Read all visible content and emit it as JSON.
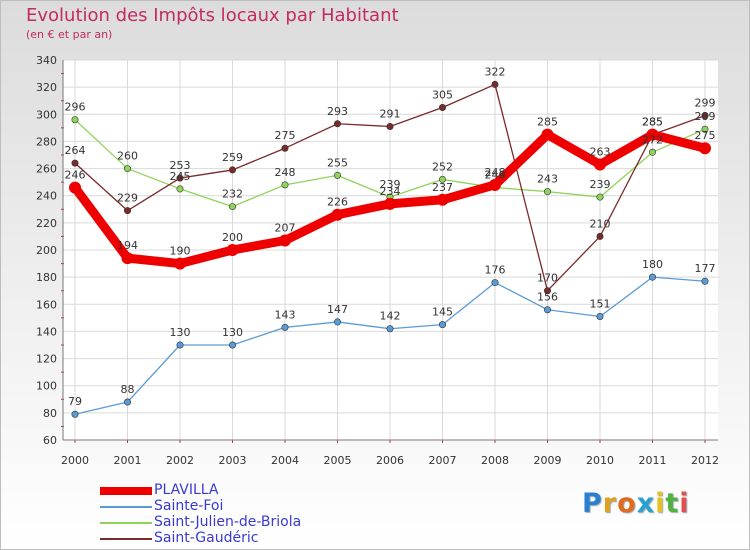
{
  "title": "Evolution des Impôts locaux par Habitant",
  "subtitle": "(en € et par an)",
  "logo_text": "Proxiti",
  "logo_letters": [
    {
      "ch": "P",
      "color": "#2a7fd0"
    },
    {
      "ch": "r",
      "color": "#e0a020"
    },
    {
      "ch": "o",
      "color": "#e06a20"
    },
    {
      "ch": "x",
      "color": "#2aa0d0"
    },
    {
      "ch": "i",
      "color": "#e8c020"
    },
    {
      "ch": "t",
      "color": "#50b040"
    },
    {
      "ch": "i",
      "color": "#e05050"
    }
  ],
  "chart_data": {
    "type": "line",
    "title": "Evolution des Impôts locaux par Habitant",
    "subtitle": "(en € et par an)",
    "xlabel": "",
    "ylabel": "",
    "categories": [
      "2000",
      "2001",
      "2002",
      "2003",
      "2004",
      "2005",
      "2006",
      "2007",
      "2008",
      "2009",
      "2010",
      "2011",
      "2012"
    ],
    "ylim": [
      60,
      340
    ],
    "yticks": [
      60,
      80,
      100,
      120,
      140,
      160,
      180,
      200,
      220,
      240,
      260,
      280,
      300,
      320,
      340
    ],
    "grid": true,
    "legend_position": "bottom-left",
    "series": [
      {
        "name": "PLAVILLA",
        "color": "#ee0000",
        "values": [
          246,
          194,
          190,
          200,
          207,
          226,
          234,
          237,
          248,
          285,
          263,
          285,
          275
        ]
      },
      {
        "name": "Sainte-Foi",
        "color": "#5b9bd5",
        "values": [
          79,
          88,
          130,
          130,
          143,
          147,
          142,
          145,
          176,
          156,
          151,
          180,
          177
        ]
      },
      {
        "name": "Saint-Julien-de-Briola",
        "color": "#8fd45a",
        "values": [
          296,
          260,
          245,
          232,
          248,
          255,
          239,
          252,
          246,
          243,
          239,
          272,
          289
        ]
      },
      {
        "name": "Saint-Gaudéric",
        "color": "#7a2a2a",
        "values": [
          264,
          229,
          253,
          259,
          275,
          293,
          291,
          305,
          322,
          170,
          210,
          285,
          299
        ]
      }
    ]
  }
}
